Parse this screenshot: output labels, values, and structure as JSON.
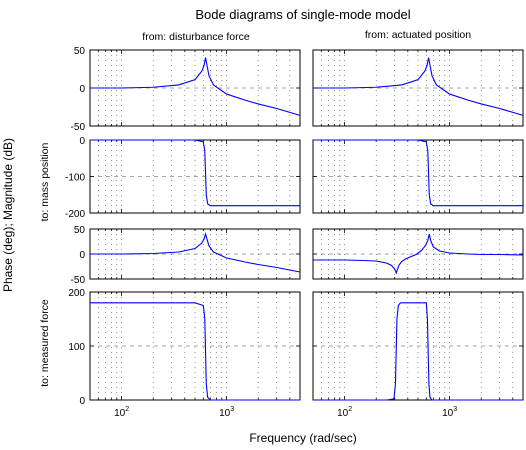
{
  "chart_data": {
    "type": "line",
    "title": "Bode diagrams of single-mode model",
    "xlabel": "Frequency (rad/sec)",
    "ylabel": "Phase (deg); Magnitude (dB)",
    "x_scale": "log",
    "xlim": [
      50,
      5000
    ],
    "x_ticks": [
      100,
      1000
    ],
    "x_tick_labels": [
      "10^2",
      "10^3"
    ],
    "column_titles": [
      "from: disturbance force",
      "from: actuated position"
    ],
    "row_labels": [
      "to: mass position",
      "to: measured force"
    ],
    "line_color": "#0000ff",
    "grid": "dotted",
    "panels": [
      {
        "row": 0,
        "col": 0,
        "kind": "magnitude",
        "ylim": [
          -50,
          50
        ],
        "yticks": [
          -50,
          0,
          50
        ],
        "ytick_labels": [
          "-50",
          "0",
          "50"
        ],
        "x": [
          50,
          100,
          200,
          350,
          500,
          580,
          610,
          630,
          650,
          680,
          750,
          1000,
          1500,
          2000,
          3000,
          5000
        ],
        "y": [
          0,
          0,
          1,
          4,
          11,
          22,
          30,
          40,
          30,
          16,
          4,
          -8,
          -16,
          -21,
          -27,
          -36
        ]
      },
      {
        "row": 0,
        "col": 1,
        "kind": "magnitude",
        "ylim": [
          -50,
          50
        ],
        "yticks": [
          -50,
          0,
          50
        ],
        "ytick_labels": [
          "-50",
          "0",
          "50"
        ],
        "x": [
          50,
          100,
          200,
          350,
          500,
          580,
          610,
          630,
          650,
          680,
          750,
          1000,
          1500,
          2000,
          3000,
          5000
        ],
        "y": [
          0,
          0,
          1,
          4,
          11,
          22,
          30,
          40,
          30,
          16,
          4,
          -8,
          -16,
          -21,
          -27,
          -36
        ]
      },
      {
        "row": 1,
        "col": 0,
        "kind": "phase",
        "ylim": [
          -200,
          0
        ],
        "yticks": [
          -200,
          -100,
          0
        ],
        "ytick_labels": [
          "-200",
          "-100",
          "0"
        ],
        "x": [
          50,
          500,
          600,
          620,
          630,
          640,
          660,
          700,
          1000,
          5000
        ],
        "y": [
          0,
          0,
          -5,
          -30,
          -90,
          -150,
          -175,
          -180,
          -180,
          -180
        ]
      },
      {
        "row": 1,
        "col": 1,
        "kind": "phase",
        "ylim": [
          -200,
          0
        ],
        "yticks": [
          -200,
          -100,
          0
        ],
        "ytick_labels": [
          "-200",
          "-100",
          "0"
        ],
        "x": [
          50,
          500,
          600,
          620,
          630,
          640,
          660,
          700,
          1000,
          5000
        ],
        "y": [
          0,
          0,
          -5,
          -30,
          -90,
          -150,
          -175,
          -180,
          -180,
          -180
        ]
      },
      {
        "row": 2,
        "col": 0,
        "kind": "magnitude",
        "ylim": [
          -50,
          50
        ],
        "yticks": [
          -50,
          0,
          50
        ],
        "ytick_labels": [
          "-50",
          "0",
          "50"
        ],
        "x": [
          50,
          100,
          200,
          350,
          500,
          580,
          610,
          630,
          650,
          680,
          750,
          1000,
          1500,
          2000,
          3000,
          5000
        ],
        "y": [
          0,
          0,
          1,
          4,
          11,
          22,
          30,
          40,
          30,
          16,
          4,
          -8,
          -16,
          -21,
          -27,
          -36
        ]
      },
      {
        "row": 2,
        "col": 1,
        "kind": "magnitude",
        "ylim": [
          -50,
          50
        ],
        "yticks": [
          -50,
          0,
          50
        ],
        "ytick_labels": [
          "-50",
          "0",
          "50"
        ],
        "x": [
          50,
          100,
          150,
          200,
          250,
          280,
          300,
          310,
          320,
          330,
          350,
          380,
          420,
          480,
          540,
          590,
          620,
          640,
          660,
          700,
          800,
          1000,
          1500,
          2000,
          3000,
          5000
        ],
        "y": [
          -12,
          -12,
          -13,
          -14,
          -18,
          -23,
          -30,
          -38,
          -30,
          -22,
          -15,
          -10,
          -6,
          -1,
          7,
          17,
          27,
          40,
          27,
          14,
          6,
          2,
          0,
          -1,
          -1,
          -2
        ]
      },
      {
        "row": 3,
        "col": 0,
        "kind": "phase",
        "ylim": [
          0,
          200
        ],
        "yticks": [
          0,
          100,
          200
        ],
        "ytick_labels": [
          "0",
          "100",
          "200"
        ],
        "x": [
          50,
          500,
          600,
          620,
          630,
          640,
          660,
          700,
          1000,
          5000
        ],
        "y": [
          180,
          180,
          175,
          150,
          90,
          30,
          5,
          0,
          0,
          0
        ]
      },
      {
        "row": 3,
        "col": 1,
        "kind": "phase",
        "ylim": [
          0,
          200
        ],
        "yticks": [
          0,
          100,
          200
        ],
        "ytick_labels": [
          "0",
          "100",
          "200"
        ],
        "x": [
          50,
          250,
          295,
          305,
          310,
          315,
          325,
          340,
          500,
          600,
          615,
          625,
          635,
          650,
          680,
          1000,
          5000
        ],
        "y": [
          0,
          0,
          2,
          30,
          90,
          150,
          175,
          180,
          180,
          180,
          150,
          90,
          30,
          5,
          0,
          0,
          0
        ]
      }
    ]
  }
}
